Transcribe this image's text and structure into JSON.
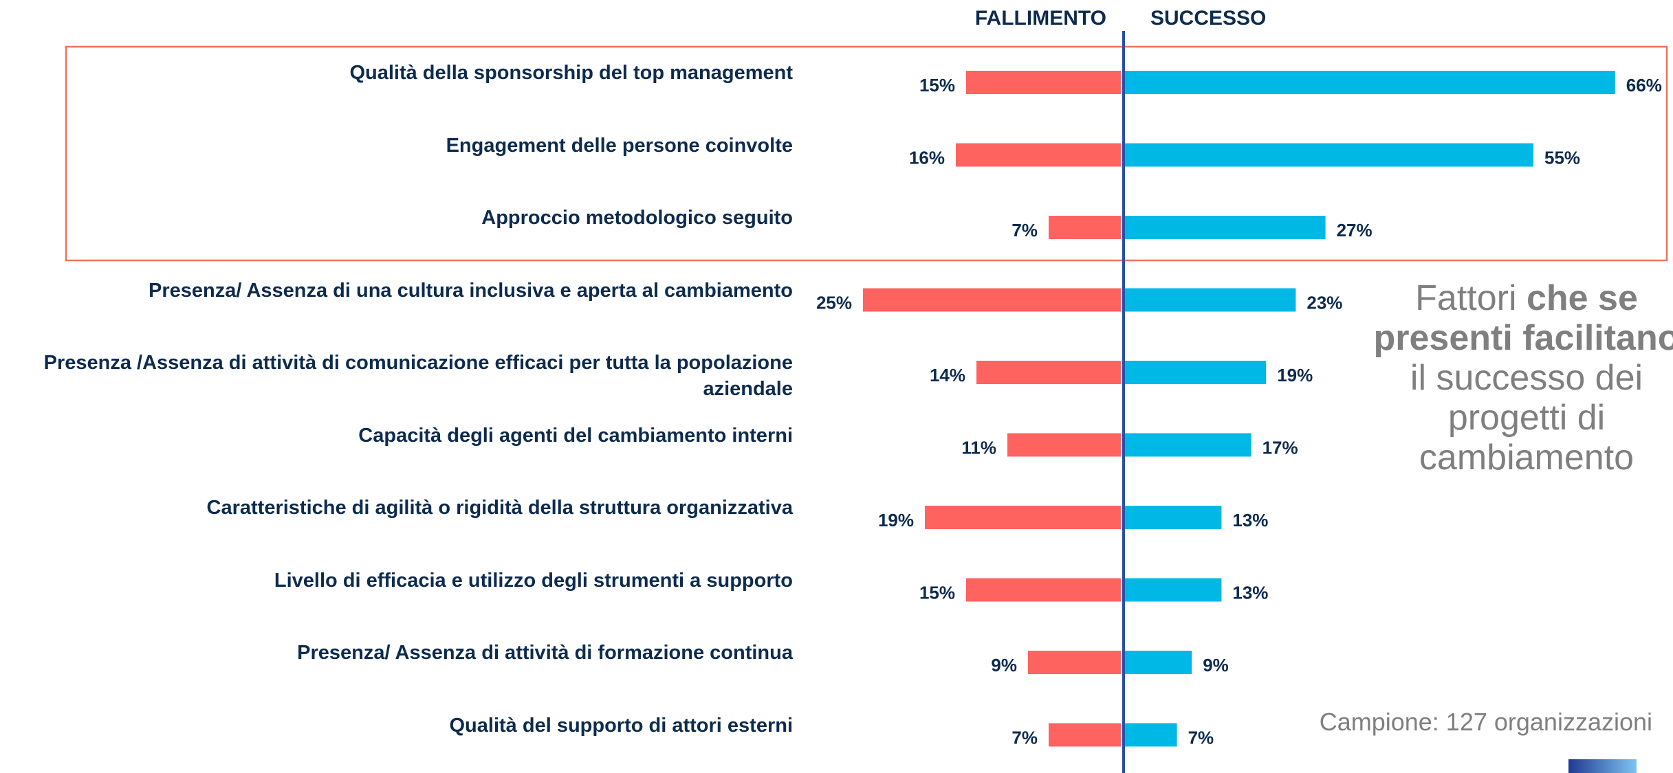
{
  "chart_data": {
    "type": "bar",
    "categories": [
      "Qualità della sponsorship del top management",
      "Engagement delle persone coinvolte",
      "Approccio metodologico seguito",
      "Presenza/ Assenza di una cultura inclusiva e aperta al cambiamento",
      "Presenza /Assenza di attività di comunicazione efficaci per tutta la popolazione aziendale",
      "Capacità degli agenti del cambiamento interni",
      "Caratteristiche di agilità o rigidità della struttura organizzativa",
      "Livello di efficacia e utilizzo degli strumenti a supporto",
      "Presenza/ Assenza di attività di formazione continua",
      "Qualità del supporto di attori esterni"
    ],
    "series": [
      {
        "name": "FALLIMENTO",
        "color": "#ff6360",
        "side": "left",
        "values": [
          15,
          16,
          7,
          25,
          14,
          11,
          19,
          15,
          9,
          7
        ],
        "value_labels": [
          "15%",
          "16%",
          "7%",
          "25%",
          "14%",
          "11%",
          "19%",
          "15%",
          "9%",
          "7%"
        ]
      },
      {
        "name": "SUCCESSO",
        "color": "#00b8e6",
        "side": "right",
        "values": [
          66,
          55,
          27,
          23,
          19,
          17,
          13,
          13,
          9,
          7
        ],
        "value_labels": [
          "66%",
          "55%",
          "27%",
          "23%",
          "19%",
          "17%",
          "13%",
          "13%",
          "9%",
          "7%"
        ]
      }
    ],
    "annotation": [
      {
        "text": "Fattori ",
        "bold": false
      },
      {
        "text": "che se presenti facilitano",
        "bold": true
      },
      {
        "text": " il successo dei progetti di cambiamento",
        "bold": false
      }
    ],
    "note": "Campione: 127 organizzazioni"
  }
}
